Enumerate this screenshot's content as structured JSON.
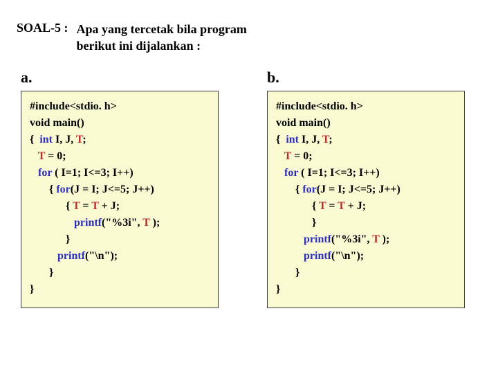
{
  "title": {
    "label": "SOAL-5 :",
    "line1": "Apa  yang  tercetak  bila  program",
    "line2": "berikut ini dijalankan :"
  },
  "columns": {
    "a": {
      "label": "a.",
      "code": {
        "l1a": "#include<stdio. h>",
        "l2a": "void main()",
        "l3a": "{  ",
        "l3b": "int ",
        "l3c": "I, J, ",
        "l3d": "T",
        "l3e": ";",
        "l4a": "   ",
        "l4b": "T",
        "l4c": " = 0;",
        "l5a": "   ",
        "l5b": "for",
        "l5c": " ( I=1; I<=3; I++)",
        "l6a": "       { ",
        "l6b": "for",
        "l6c": "(J = I; J<=5; J++)",
        "l7a": "             { ",
        "l7b": "T",
        "l7c": " = ",
        "l7d": "T",
        "l7e": " + J;",
        "l8a": "                ",
        "l8b": "printf",
        "l8c": "(\"%3i\", ",
        "l8d": "T",
        "l8e": " );",
        "l9a": "             }",
        "l10a": "          ",
        "l10b": "printf",
        "l10c": "(\"\\n\");",
        "l11a": "       }",
        "l12a": "}"
      }
    },
    "b": {
      "label": "b.",
      "code": {
        "l1a": "#include<stdio. h>",
        "l2a": "void main()",
        "l3a": "{  ",
        "l3b": "int ",
        "l3c": "I, J, ",
        "l3d": "T",
        "l3e": ";",
        "l4a": "   ",
        "l4b": "T",
        "l4c": " = 0;",
        "l5a": "   ",
        "l5b": "for",
        "l5c": " ( I=1; I<=3; I++)",
        "l6a": "       { ",
        "l6b": "for",
        "l6c": "(J = I; J<=5; J++)",
        "l7a": "             { ",
        "l7b": "T",
        "l7c": " = ",
        "l7d": "T",
        "l7e": " + J;",
        "l8a": "             }",
        "l9a": "          ",
        "l9b": "printf",
        "l9c": "(\"%3i\", ",
        "l9d": "T",
        "l9e": " );",
        "l10a": "          ",
        "l10b": "printf",
        "l10c": "(\"\\n\");",
        "l11a": "       }",
        "l12a": "}"
      }
    }
  },
  "colors": {
    "box_bg": "#f9fad2",
    "box_border": "#3a3a3a",
    "keyword": "#2f2fbf",
    "variable": "#b83030",
    "text": "#000000",
    "page_bg": "#ffffff"
  }
}
